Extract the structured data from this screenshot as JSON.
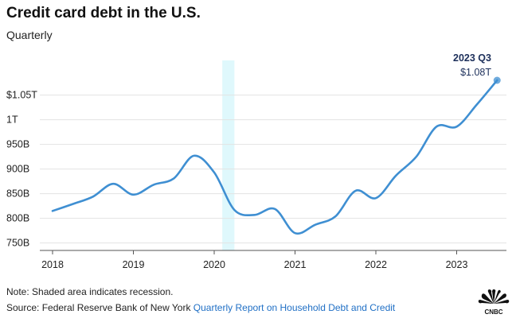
{
  "title": "Credit card debt in the U.S.",
  "subtitle": "Quarterly",
  "note": "Note: Shaded area indicates recession.",
  "source": {
    "prefix": "Source: Federal Reserve Bank of New York",
    "link_text": "Quarterly Report on Household Debt and Credit"
  },
  "logo_text": "CNBC",
  "colors": {
    "line": "#3f8fd2",
    "recession": "#dff8fc",
    "label": "#1c2f5a"
  },
  "chart_data": {
    "type": "line",
    "title": "Credit card debt in the U.S.",
    "subtitle": "Quarterly",
    "x_unit": "year",
    "xlim": [
      2017.65,
      2023.65
    ],
    "ylim_billions": [
      730,
      1130
    ],
    "y_ticks": [
      {
        "value": 750,
        "label": "750B"
      },
      {
        "value": 800,
        "label": "800B"
      },
      {
        "value": 850,
        "label": "850B"
      },
      {
        "value": 900,
        "label": "900B"
      },
      {
        "value": 950,
        "label": "950B"
      },
      {
        "value": 1000,
        "label": "1T"
      },
      {
        "value": 1050,
        "label": "$1.05T"
      }
    ],
    "x_ticks": [
      {
        "value": 2018,
        "label": "2018"
      },
      {
        "value": 2019,
        "label": "2019"
      },
      {
        "value": 2020,
        "label": "2020"
      },
      {
        "value": 2021,
        "label": "2021"
      },
      {
        "value": 2022,
        "label": "2022"
      },
      {
        "value": 2023,
        "label": "2023"
      }
    ],
    "grid": true,
    "recession": {
      "start": 2020.1,
      "end": 2020.25
    },
    "series": [
      {
        "values_billions": [
          {
            "x": "2018 Q1",
            "y": 815
          },
          {
            "x": "2018 Q2",
            "y": 829
          },
          {
            "x": "2018 Q3",
            "y": 844
          },
          {
            "x": "2018 Q4",
            "y": 870
          },
          {
            "x": "2019 Q1",
            "y": 848
          },
          {
            "x": "2019 Q2",
            "y": 868
          },
          {
            "x": "2019 Q3",
            "y": 881
          },
          {
            "x": "2019 Q4",
            "y": 927
          },
          {
            "x": "2020 Q1",
            "y": 893
          },
          {
            "x": "2020 Q2",
            "y": 817
          },
          {
            "x": "2020 Q3",
            "y": 807
          },
          {
            "x": "2020 Q4",
            "y": 819
          },
          {
            "x": "2021 Q1",
            "y": 770
          },
          {
            "x": "2021 Q2",
            "y": 787
          },
          {
            "x": "2021 Q3",
            "y": 804
          },
          {
            "x": "2021 Q4",
            "y": 856
          },
          {
            "x": "2022 Q1",
            "y": 841
          },
          {
            "x": "2022 Q2",
            "y": 887
          },
          {
            "x": "2022 Q3",
            "y": 925
          },
          {
            "x": "2022 Q4",
            "y": 986
          },
          {
            "x": "2023 Q1",
            "y": 986
          },
          {
            "x": "2023 Q2",
            "y": 1031
          },
          {
            "x": "2023 Q3",
            "y": 1080
          }
        ]
      }
    ],
    "annotation": {
      "period": "2023 Q3",
      "value": "$1.08T"
    }
  }
}
